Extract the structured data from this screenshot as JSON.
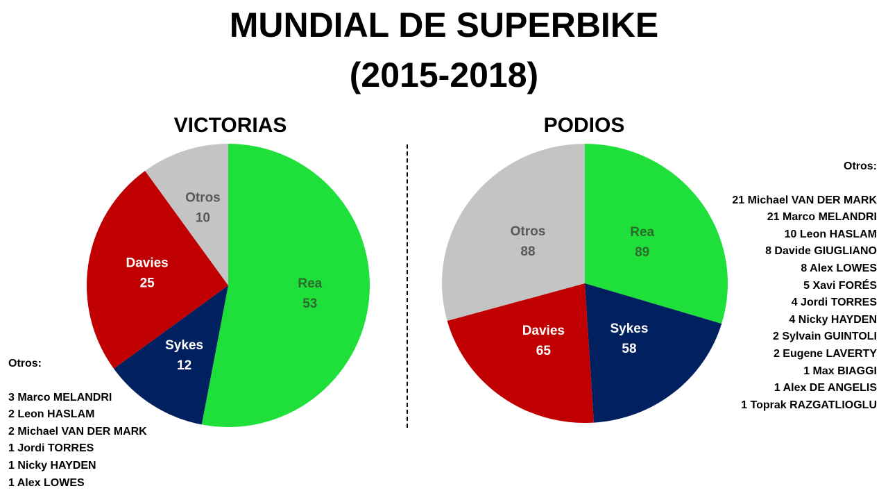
{
  "title_line1": "MUNDIAL DE SUPERBIKE",
  "title_line2": "(2015-2018)",
  "chart_data": [
    {
      "type": "pie",
      "title": "VICTORIAS",
      "slices": [
        {
          "label": "Rea",
          "value": 53,
          "color": "#1fe03a",
          "text_color": "#2d6a2d"
        },
        {
          "label": "Sykes",
          "value": 12,
          "color": "#002060",
          "text_color": "#ffffff"
        },
        {
          "label": "Davies",
          "value": 25,
          "color": "#c00000",
          "text_color": "#ffffff"
        },
        {
          "label": "Otros",
          "value": 10,
          "color": "#c4c4c4",
          "text_color": "#595959"
        }
      ],
      "others_heading": "Otros:",
      "others": [
        "3 Marco MELANDRI",
        "2 Leon HASLAM",
        "2 Michael VAN DER MARK",
        "1 Jordi TORRES",
        "1 Nicky HAYDEN",
        "1 Alex LOWES"
      ]
    },
    {
      "type": "pie",
      "title": "PODIOS",
      "slices": [
        {
          "label": "Rea",
          "value": 89,
          "color": "#1fe03a",
          "text_color": "#2d6a2d"
        },
        {
          "label": "Sykes",
          "value": 58,
          "color": "#002060",
          "text_color": "#ffffff"
        },
        {
          "label": "Davies",
          "value": 65,
          "color": "#c00000",
          "text_color": "#ffffff"
        },
        {
          "label": "Otros",
          "value": 88,
          "color": "#c4c4c4",
          "text_color": "#595959"
        }
      ],
      "others_heading": "Otros:",
      "others": [
        "21 Michael VAN DER MARK",
        "21 Marco MELANDRI",
        "10 Leon HASLAM",
        "8 Davide GIUGLIANO",
        "8 Alex LOWES",
        "5 Xavi FORÉS",
        "4 Jordi TORRES",
        "4 Nicky HAYDEN",
        "2 Sylvain GUINTOLI",
        "2 Eugene LAVERTY",
        "1 Max BIAGGI",
        "1 Alex DE ANGELIS",
        "1 Toprak RAZGATLIOGLU"
      ]
    }
  ]
}
